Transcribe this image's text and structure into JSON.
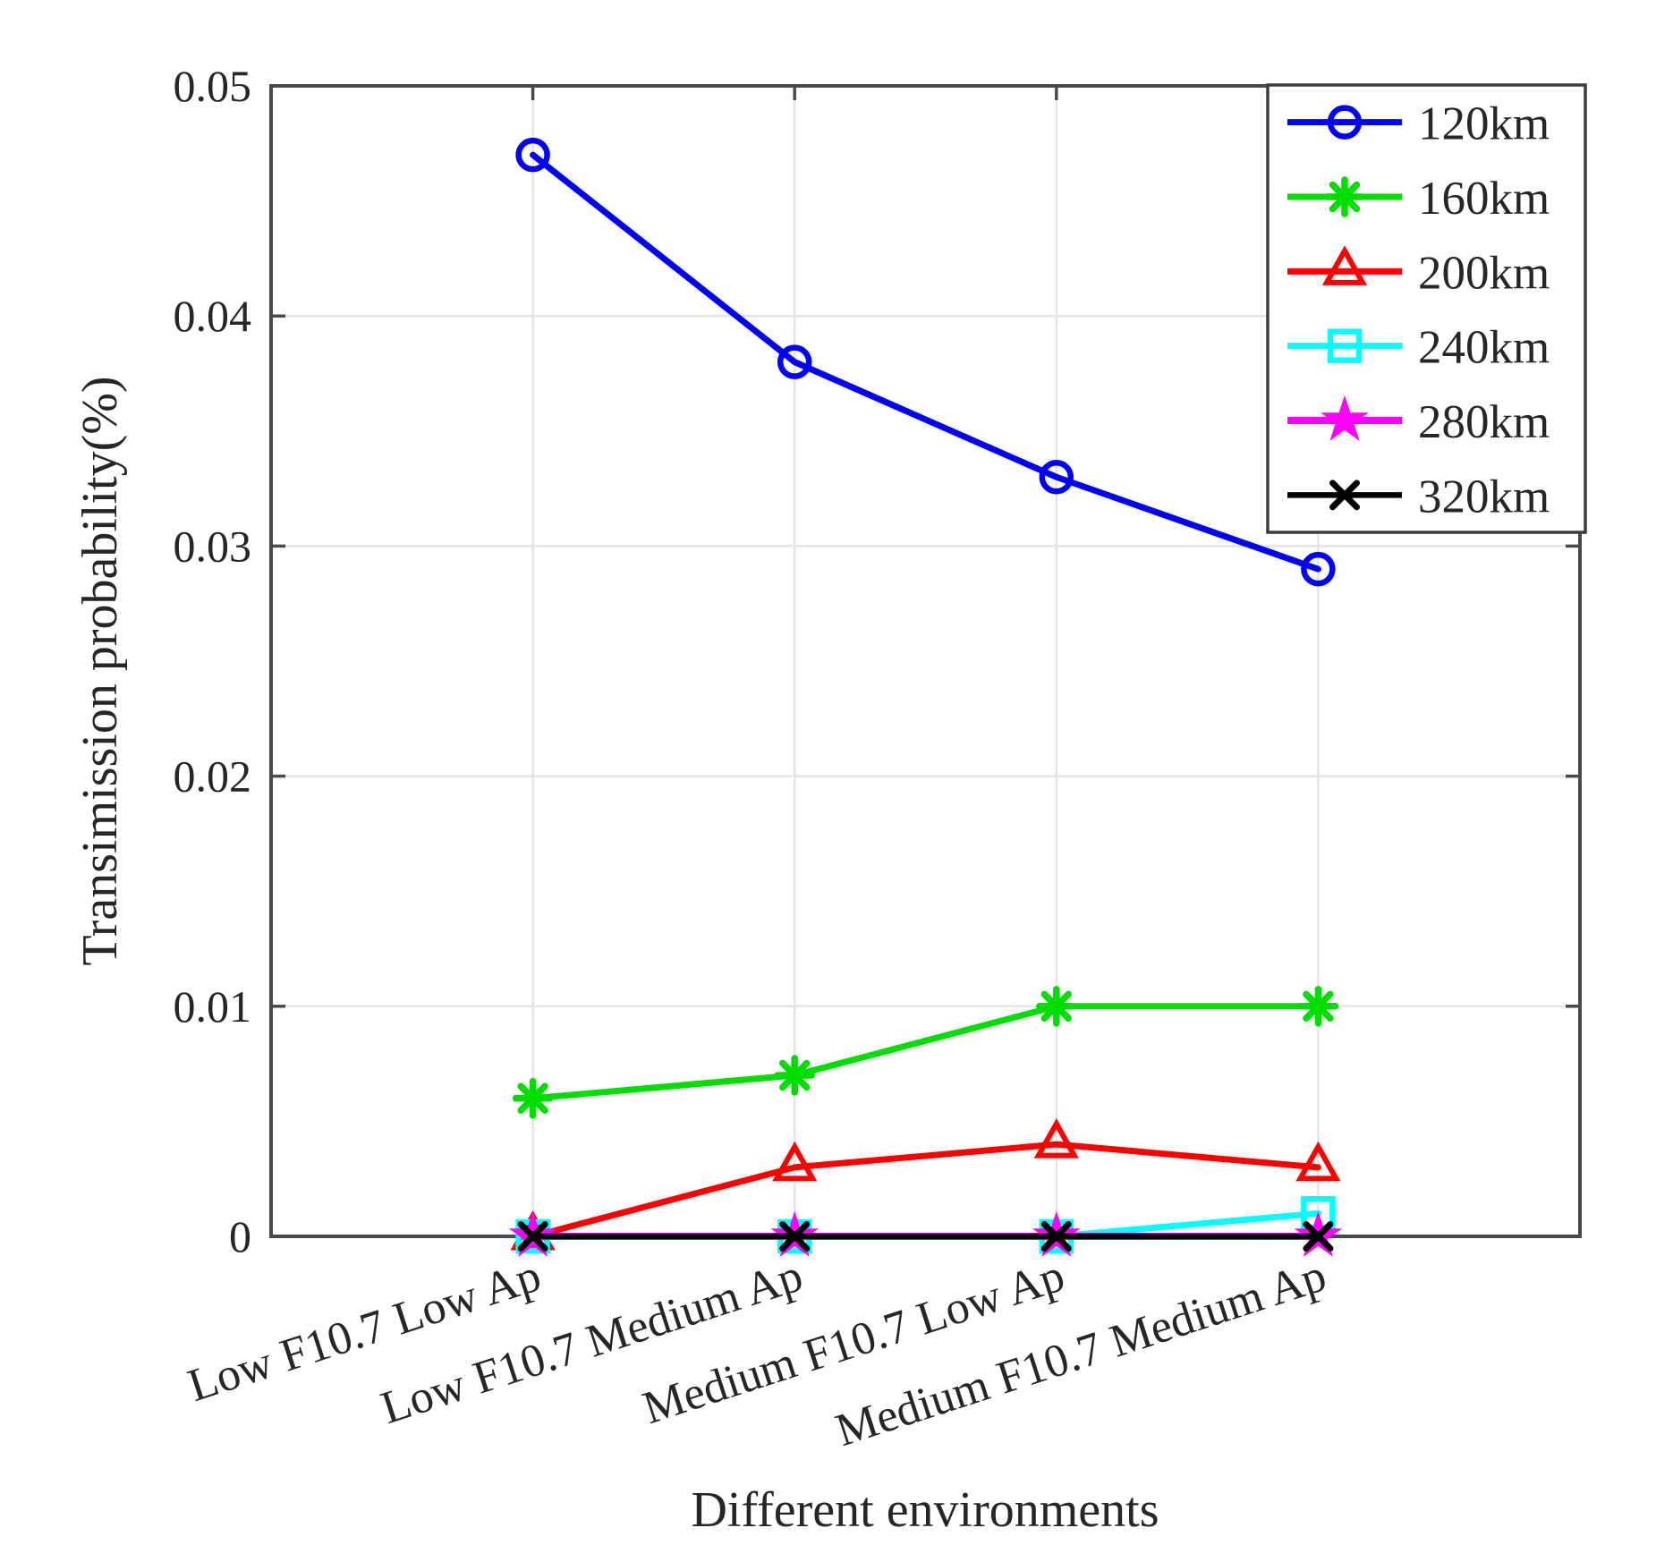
{
  "chart_data": {
    "type": "line",
    "title": "",
    "xlabel": "Different environments",
    "ylabel": "Transimission probability(%)",
    "categories": [
      "Low F10.7 Low Ap",
      "Low F10.7 Medium Ap",
      "Medium F10.7 Low Ap",
      "Medium F10.7 Medium Ap"
    ],
    "series": [
      {
        "name": "120km",
        "color": "#0000ff",
        "marker": "circle",
        "values": [
          0.047,
          0.038,
          0.033,
          0.029
        ]
      },
      {
        "name": "160km",
        "color": "#00dd00",
        "marker": "asterisk",
        "values": [
          0.006,
          0.007,
          0.01,
          0.01
        ]
      },
      {
        "name": "200km",
        "color": "#ff0000",
        "marker": "triangle",
        "values": [
          0.0,
          0.003,
          0.004,
          0.003
        ]
      },
      {
        "name": "240km",
        "color": "#00ffff",
        "marker": "square",
        "values": [
          0.0,
          0.0,
          0.0,
          0.001
        ]
      },
      {
        "name": "280km",
        "color": "#ff00ff",
        "marker": "star",
        "values": [
          0.0,
          0.0,
          0.0,
          0.0
        ]
      },
      {
        "name": "320km",
        "color": "#000000",
        "marker": "x",
        "values": [
          0.0,
          0.0,
          0.0,
          0.0
        ]
      }
    ],
    "ylim": [
      0,
      0.05
    ],
    "yticks": [
      0,
      0.01,
      0.02,
      0.03,
      0.04,
      0.05
    ],
    "ytick_labels": [
      "0",
      "0.01",
      "0.02",
      "0.03",
      "0.04",
      "0.05"
    ],
    "grid": true,
    "legend_position": "top-right"
  },
  "style": {
    "background": "#ffffff",
    "axis_color": "#4a4a4a",
    "grid_color": "#e4e4e4",
    "text_color": "#262626",
    "legend_border_color": "#3c3c3c"
  }
}
